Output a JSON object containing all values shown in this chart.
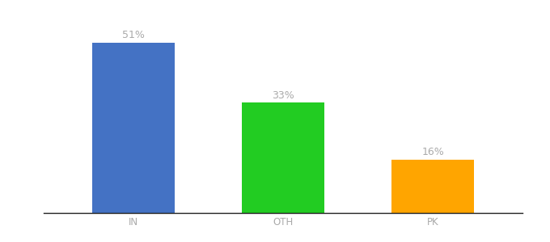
{
  "categories": [
    "IN",
    "OTH",
    "PK"
  ],
  "values": [
    51,
    33,
    16
  ],
  "bar_colors": [
    "#4472C4",
    "#22CC22",
    "#FFA500"
  ],
  "labels": [
    "51%",
    "33%",
    "16%"
  ],
  "background_color": "#ffffff",
  "label_color": "#aaaaaa",
  "label_fontsize": 9,
  "tick_fontsize": 8.5,
  "ylim": [
    0,
    58
  ],
  "bar_width": 0.55,
  "xlim": [
    -0.6,
    2.6
  ]
}
